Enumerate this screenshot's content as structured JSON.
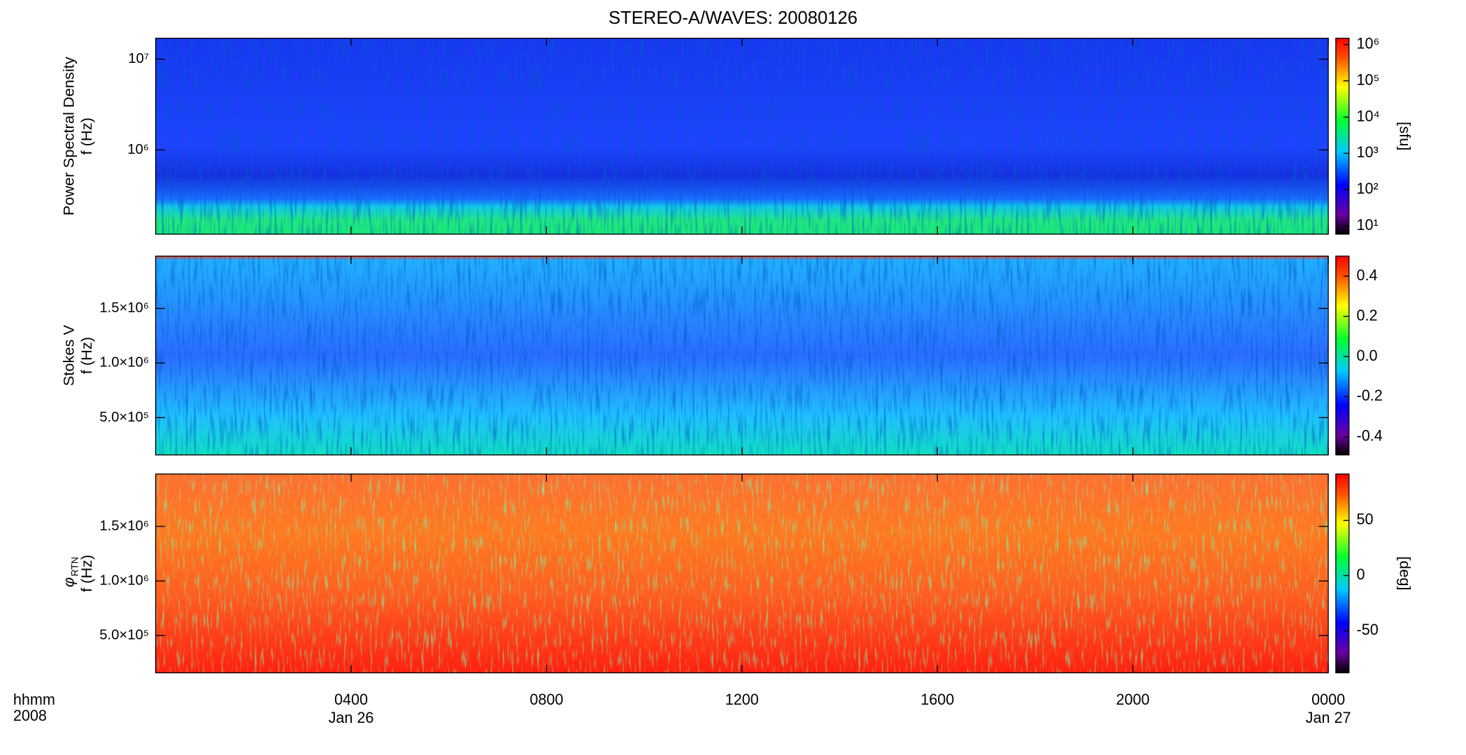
{
  "chart_data": [
    {
      "type": "heatmap",
      "title": "STEREO-A/WAVES: 20080126",
      "ylabel": "Power Spectral Density",
      "ylabel2": "f (Hz)",
      "ylim": [
        118000,
        17000000
      ],
      "log_scale": true,
      "yticks": [
        {
          "value": 1000000,
          "label": "10⁶"
        },
        {
          "value": 10000000,
          "label": "10⁷"
        }
      ],
      "colormap": "rainbow",
      "clim": [
        5.9,
        1500000
      ],
      "clog": true,
      "colorbar_label": "[sfu]",
      "cticks": [
        {
          "value": 10,
          "label": "10¹"
        },
        {
          "value": 100,
          "label": "10²"
        },
        {
          "value": 1000,
          "label": "10³"
        },
        {
          "value": 10000,
          "label": "10⁴"
        },
        {
          "value": 100000,
          "label": "10⁵"
        },
        {
          "value": 1000000,
          "label": "10⁶"
        }
      ]
    },
    {
      "type": "heatmap",
      "ylabel": "Stokes V",
      "ylabel2": "f (Hz)",
      "ylim": [
        158000,
        1980000
      ],
      "log_scale": false,
      "yticks": [
        {
          "value": 500000,
          "label": "5.0×10⁵"
        },
        {
          "value": 1000000,
          "label": "1.0×10⁶"
        },
        {
          "value": 1500000,
          "label": "1.5×10⁶"
        }
      ],
      "colormap": "rainbow",
      "clim": [
        -0.49,
        0.5
      ],
      "clog": false,
      "cticks": [
        -0.4,
        -0.2,
        {
          "value": 0,
          "label": "0.0"
        },
        0.2,
        0.4
      ]
    },
    {
      "type": "heatmap",
      "ylabel": "φ",
      "ylabel_sub": "RTN",
      "ylabel2": "f (Hz)",
      "ylim": [
        158000,
        1980000
      ],
      "log_scale": false,
      "yticks": [
        {
          "value": 500000,
          "label": "5.0×10⁵"
        },
        {
          "value": 1000000,
          "label": "1.0×10⁶"
        },
        {
          "value": 1500000,
          "label": "1.5×10⁶"
        }
      ],
      "colormap": "rainbow",
      "clim": [
        -88,
        92
      ],
      "clog": false,
      "colorbar_label": "[deg]",
      "cticks": [
        -50,
        0,
        50
      ],
      "xlim": [
        0,
        24
      ],
      "xticks": [
        {
          "value": 4,
          "label": "0400"
        },
        {
          "value": 8,
          "label": "0800"
        },
        {
          "value": 12,
          "label": "1200"
        },
        {
          "value": 16,
          "label": "1600"
        },
        {
          "value": 20,
          "label": "2000"
        },
        {
          "value": 24,
          "label": "0000"
        }
      ],
      "date_labels": [
        {
          "value": 4,
          "label": "Jan 26"
        },
        {
          "value": 24,
          "label": "Jan 27"
        }
      ],
      "xlabel": "hhmm",
      "xlabel2": "2008"
    }
  ]
}
